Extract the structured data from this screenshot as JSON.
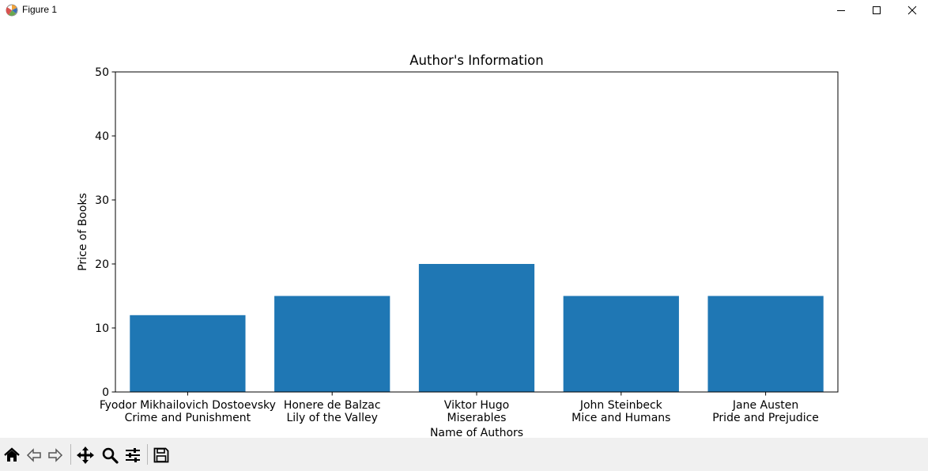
{
  "window": {
    "title": "Figure 1",
    "icon": "matplotlib-logo-icon",
    "controls": [
      "minimize-icon",
      "maximize-icon",
      "close-icon"
    ]
  },
  "toolbar": {
    "buttons": [
      "home-icon",
      "back-arrow-icon",
      "forward-arrow-icon",
      "pan-move-icon",
      "zoom-magnifier-icon",
      "configure-subplots-icon",
      "save-floppy-icon"
    ]
  },
  "chart_data": {
    "type": "bar",
    "title": "Author's Information",
    "xlabel": "Name of Authors",
    "ylabel": "Price of Books",
    "categories": [
      [
        "Fyodor Mikhailovich Dostoevsky",
        "Crime and Punishment"
      ],
      [
        "Honere de Balzac",
        "Lily of the Valley"
      ],
      [
        "Viktor Hugo",
        "Miserables"
      ],
      [
        "John Steinbeck",
        "Mice and Humans"
      ],
      [
        "Jane Austen",
        "Pride and Prejudice"
      ]
    ],
    "values": [
      12,
      15,
      20,
      15,
      15
    ],
    "ylim": [
      0,
      50
    ],
    "yticks": [
      0,
      10,
      20,
      30,
      40,
      50
    ],
    "bar_color": "#1f77b4",
    "grid": false,
    "legend": false
  }
}
